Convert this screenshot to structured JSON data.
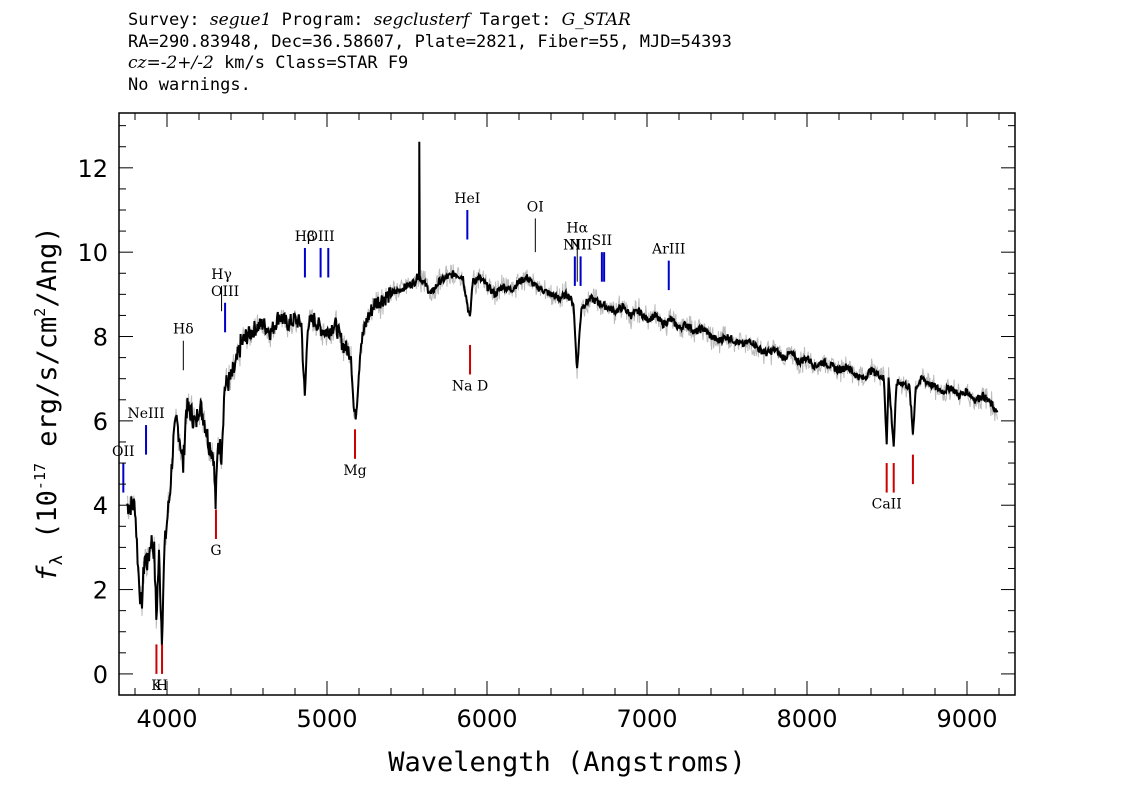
{
  "header": {
    "survey_label": "Survey:",
    "survey": "segue1",
    "program_label": "Program:",
    "program": "segclusterf",
    "target_label": "Target:",
    "target": "G_STAR",
    "line2": "RA=290.83948, Dec=36.58607, Plate=2821, Fiber=55, MJD=54393",
    "cz_label": "cz=",
    "cz_value": "-2+/-2",
    "cz_rest": " km/s Class=STAR F9",
    "line4": "No warnings."
  },
  "chart_data": {
    "type": "line",
    "title": "",
    "xlabel": "Wavelength (Angstroms)",
    "ylabel_main": "f",
    "ylabel_sub": "λ",
    "ylabel_rest": " (10",
    "ylabel_exp": "-17",
    "ylabel_tail": " erg/s/cm",
    "ylabel_exp2": "2",
    "ylabel_end": "/Ang)",
    "xlim": [
      3700,
      9300
    ],
    "ylim": [
      -0.5,
      13.3
    ],
    "x_ticks": [
      "4000",
      "5000",
      "6000",
      "7000",
      "8000",
      "9000"
    ],
    "y_ticks": [
      "0",
      "2",
      "4",
      "6",
      "8",
      "10",
      "12"
    ],
    "grid": false,
    "legend": "none",
    "colors": {
      "flux": "#000000",
      "error": "#bbbbbb",
      "emission": "#0000cc",
      "absorption": "#cc0000",
      "other": "#000000"
    },
    "spectrum": [
      [
        3750,
        4.0
      ],
      [
        3800,
        4.0
      ],
      [
        3820,
        2.5
      ],
      [
        3840,
        1.5
      ],
      [
        3860,
        2.8
      ],
      [
        3880,
        2.6
      ],
      [
        3900,
        3.2
      ],
      [
        3920,
        2.9
      ],
      [
        3933,
        1.3
      ],
      [
        3950,
        2.8
      ],
      [
        3968,
        0.9
      ],
      [
        3985,
        3.0
      ],
      [
        4000,
        3.6
      ],
      [
        4020,
        4.4
      ],
      [
        4040,
        5.5
      ],
      [
        4060,
        6.0
      ],
      [
        4080,
        5.6
      ],
      [
        4101,
        4.9
      ],
      [
        4120,
        6.3
      ],
      [
        4150,
        6.2
      ],
      [
        4180,
        5.9
      ],
      [
        4200,
        6.4
      ],
      [
        4230,
        6.1
      ],
      [
        4260,
        5.5
      ],
      [
        4290,
        5.2
      ],
      [
        4304,
        4.0
      ],
      [
        4320,
        5.6
      ],
      [
        4340,
        5.2
      ],
      [
        4360,
        6.8
      ],
      [
        4400,
        7.0
      ],
      [
        4430,
        7.3
      ],
      [
        4460,
        7.8
      ],
      [
        4500,
        8.0
      ],
      [
        4550,
        8.2
      ],
      [
        4600,
        8.3
      ],
      [
        4650,
        8.1
      ],
      [
        4700,
        8.5
      ],
      [
        4750,
        8.3
      ],
      [
        4800,
        8.4
      ],
      [
        4840,
        8.3
      ],
      [
        4861,
        6.5
      ],
      [
        4880,
        8.3
      ],
      [
        4920,
        8.4
      ],
      [
        4960,
        8.2
      ],
      [
        5000,
        8.1
      ],
      [
        5050,
        8.3
      ],
      [
        5100,
        7.8
      ],
      [
        5150,
        7.6
      ],
      [
        5167,
        6.3
      ],
      [
        5175,
        6.1
      ],
      [
        5184,
        6.3
      ],
      [
        5210,
        7.8
      ],
      [
        5250,
        8.4
      ],
      [
        5300,
        8.8
      ],
      [
        5350,
        8.9
      ],
      [
        5400,
        9.0
      ],
      [
        5450,
        9.1
      ],
      [
        5500,
        9.2
      ],
      [
        5550,
        9.3
      ],
      [
        5575,
        9.5
      ],
      [
        5577,
        12.6
      ],
      [
        5580,
        9.4
      ],
      [
        5620,
        9.2
      ],
      [
        5650,
        9.0
      ],
      [
        5700,
        9.3
      ],
      [
        5750,
        9.4
      ],
      [
        5800,
        9.5
      ],
      [
        5850,
        9.4
      ],
      [
        5893,
        8.4
      ],
      [
        5910,
        9.3
      ],
      [
        5950,
        9.4
      ],
      [
        6000,
        9.2
      ],
      [
        6050,
        9.0
      ],
      [
        6100,
        9.2
      ],
      [
        6150,
        9.1
      ],
      [
        6200,
        9.3
      ],
      [
        6250,
        9.4
      ],
      [
        6300,
        9.2
      ],
      [
        6350,
        9.1
      ],
      [
        6400,
        9.0
      ],
      [
        6450,
        8.9
      ],
      [
        6500,
        9.0
      ],
      [
        6540,
        8.8
      ],
      [
        6563,
        7.2
      ],
      [
        6590,
        8.7
      ],
      [
        6650,
        8.9
      ],
      [
        6700,
        8.8
      ],
      [
        6750,
        8.7
      ],
      [
        6800,
        8.6
      ],
      [
        6850,
        8.7
      ],
      [
        6900,
        8.5
      ],
      [
        6950,
        8.6
      ],
      [
        7000,
        8.4
      ],
      [
        7050,
        8.5
      ],
      [
        7100,
        8.3
      ],
      [
        7150,
        8.4
      ],
      [
        7200,
        8.2
      ],
      [
        7250,
        8.3
      ],
      [
        7300,
        8.1
      ],
      [
        7350,
        8.2
      ],
      [
        7400,
        8.0
      ],
      [
        7450,
        7.9
      ],
      [
        7500,
        8.0
      ],
      [
        7550,
        7.9
      ],
      [
        7600,
        7.8
      ],
      [
        7650,
        7.9
      ],
      [
        7700,
        7.7
      ],
      [
        7750,
        7.6
      ],
      [
        7800,
        7.7
      ],
      [
        7850,
        7.5
      ],
      [
        7900,
        7.6
      ],
      [
        7950,
        7.4
      ],
      [
        8000,
        7.5
      ],
      [
        8050,
        7.3
      ],
      [
        8100,
        7.4
      ],
      [
        8150,
        7.3
      ],
      [
        8200,
        7.2
      ],
      [
        8250,
        7.3
      ],
      [
        8300,
        7.1
      ],
      [
        8350,
        7.0
      ],
      [
        8400,
        7.2
      ],
      [
        8450,
        7.1
      ],
      [
        8480,
        7.0
      ],
      [
        8498,
        5.5
      ],
      [
        8510,
        7.0
      ],
      [
        8542,
        5.4
      ],
      [
        8560,
        6.9
      ],
      [
        8600,
        6.9
      ],
      [
        8640,
        6.8
      ],
      [
        8662,
        5.7
      ],
      [
        8680,
        6.8
      ],
      [
        8720,
        7.0
      ],
      [
        8760,
        6.9
      ],
      [
        8800,
        6.8
      ],
      [
        8850,
        6.7
      ],
      [
        8900,
        6.8
      ],
      [
        8950,
        6.6
      ],
      [
        9000,
        6.7
      ],
      [
        9050,
        6.5
      ],
      [
        9100,
        6.6
      ],
      [
        9150,
        6.4
      ],
      [
        9190,
        6.2
      ]
    ],
    "lines": [
      {
        "label": "OII",
        "wave": 3727,
        "y1": 5.0,
        "y2": 4.3,
        "kind": "emission"
      },
      {
        "label": "NeIII",
        "wave": 3869,
        "y1": 5.9,
        "y2": 5.2,
        "kind": "emission"
      },
      {
        "label": "Hδ",
        "wave": 4102,
        "y1": 7.9,
        "y2": 7.2,
        "kind": "other"
      },
      {
        "label": "Hγ",
        "wave": 4341,
        "y1": 9.2,
        "y2": 8.6,
        "kind": "other"
      },
      {
        "label": "OIII",
        "wave": 4363,
        "y1": 8.8,
        "y2": 8.1,
        "kind": "emission"
      },
      {
        "label": "Hβ",
        "wave": 4862,
        "y1": 10.1,
        "y2": 9.4,
        "kind": "emission"
      },
      {
        "label": "OIII",
        "wave": 4960,
        "y1": 10.1,
        "y2": 9.4,
        "kind": "emission"
      },
      {
        "label": "",
        "wave": 5008,
        "y1": 10.1,
        "y2": 9.4,
        "kind": "emission"
      },
      {
        "label": "HeI",
        "wave": 5877,
        "y1": 11.0,
        "y2": 10.3,
        "kind": "emission"
      },
      {
        "label": "OI",
        "wave": 6302,
        "y1": 10.8,
        "y2": 10.0,
        "kind": "other"
      },
      {
        "label": "NII",
        "wave": 6549,
        "y1": 9.9,
        "y2": 9.2,
        "kind": "emission"
      },
      {
        "label": "Hα",
        "wave": 6564,
        "y1": 10.3,
        "y2": 9.3,
        "kind": "other"
      },
      {
        "label": "NII",
        "wave": 6585,
        "y1": 9.9,
        "y2": 9.2,
        "kind": "emission"
      },
      {
        "label": "SII",
        "wave": 6718,
        "y1": 10.0,
        "y2": 9.3,
        "kind": "emission"
      },
      {
        "label": "",
        "wave": 6732,
        "y1": 10.0,
        "y2": 9.3,
        "kind": "emission"
      },
      {
        "label": "ArIII",
        "wave": 7136,
        "y1": 9.8,
        "y2": 9.1,
        "kind": "emission"
      },
      {
        "label": "K",
        "wave": 3934,
        "y1": 0.7,
        "y2": 0.0,
        "kind": "absorption"
      },
      {
        "label": "H",
        "wave": 3969,
        "y1": 0.7,
        "y2": 0.0,
        "kind": "absorption"
      },
      {
        "label": "G",
        "wave": 4306,
        "y1": 3.9,
        "y2": 3.2,
        "kind": "absorption"
      },
      {
        "label": "Mg",
        "wave": 5175,
        "y1": 5.8,
        "y2": 5.1,
        "kind": "absorption"
      },
      {
        "label": "Na D",
        "wave": 5894,
        "y1": 7.8,
        "y2": 7.1,
        "kind": "absorption"
      },
      {
        "label": "CaII",
        "wave": 8498,
        "y1": 5.0,
        "y2": 4.3,
        "kind": "absorption"
      },
      {
        "label": "",
        "wave": 8542,
        "y1": 5.0,
        "y2": 4.3,
        "kind": "absorption"
      },
      {
        "label": "",
        "wave": 8662,
        "y1": 5.2,
        "y2": 4.5,
        "kind": "absorption"
      }
    ]
  }
}
